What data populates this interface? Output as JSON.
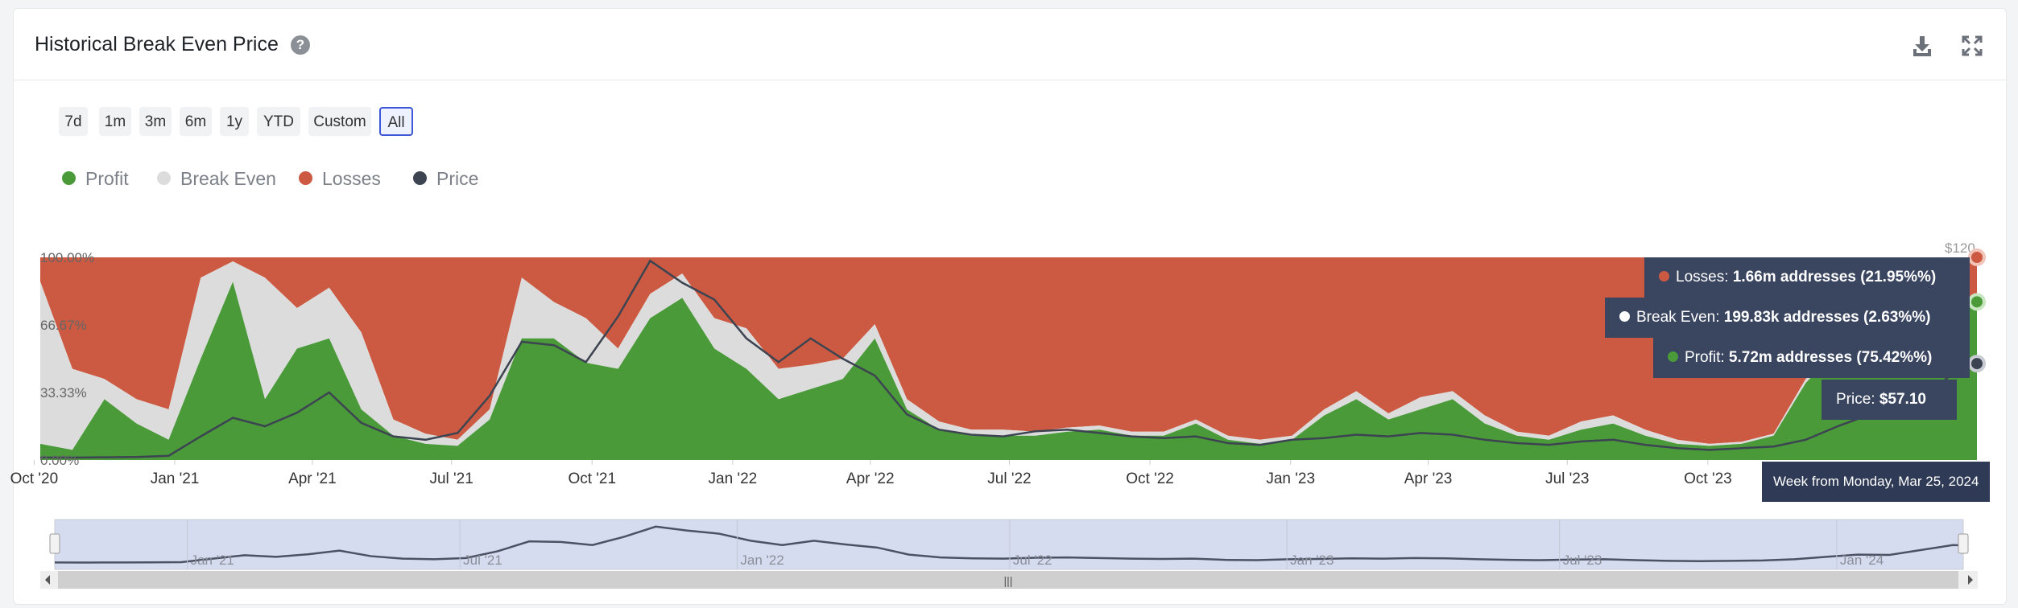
{
  "header": {
    "title": "Historical Break Even Price",
    "help_icon": "question-circle-icon",
    "download_icon": "download-icon",
    "expand_icon": "expand-icon"
  },
  "range_buttons": [
    "7d",
    "1m",
    "3m",
    "6m",
    "1y",
    "YTD",
    "Custom",
    "All"
  ],
  "active_range": "All",
  "legend": [
    {
      "label": "Profit",
      "color": "#4a9a3a"
    },
    {
      "label": "Break Even",
      "color": "#dcdcdc"
    },
    {
      "label": "Losses",
      "color": "#cc5a42"
    },
    {
      "label": "Price",
      "color": "#3d4451"
    }
  ],
  "tooltip": {
    "losses_label": "Losses: ",
    "losses_value": "1.66m addresses (21.95%%)",
    "break_even_label": "Break Even: ",
    "break_even_value": "199.83k addresses (2.63%%)",
    "profit_label": "Profit: ",
    "profit_value": "5.72m addresses (75.42%%)",
    "price_label": "Price: ",
    "price_value": "$57.10",
    "week_label": "Week from Monday, Mar 25, 2024"
  },
  "navigator": {
    "tick_labels": [
      "Jan '21",
      "Jul '21",
      "Jan '22",
      "Jul '22",
      "Jan '23",
      "Jul '23",
      "Jan '24"
    ],
    "scrollbar_grip": "|||"
  },
  "chart_data": {
    "type": "area",
    "stacking": "percent",
    "x": [
      "2020-10-05",
      "2020-10-26",
      "2020-11-16",
      "2020-12-07",
      "2020-12-28",
      "2021-01-18",
      "2021-02-08",
      "2021-03-01",
      "2021-03-22",
      "2021-04-12",
      "2021-05-03",
      "2021-05-24",
      "2021-06-14",
      "2021-07-05",
      "2021-07-26",
      "2021-08-16",
      "2021-09-06",
      "2021-09-27",
      "2021-10-18",
      "2021-11-08",
      "2021-11-29",
      "2021-12-20",
      "2022-01-10",
      "2022-01-31",
      "2022-02-21",
      "2022-03-14",
      "2022-04-04",
      "2022-04-25",
      "2022-05-16",
      "2022-06-06",
      "2022-06-27",
      "2022-07-18",
      "2022-08-08",
      "2022-08-29",
      "2022-09-19",
      "2022-10-10",
      "2022-10-31",
      "2022-11-21",
      "2022-12-12",
      "2023-01-02",
      "2023-01-23",
      "2023-02-13",
      "2023-03-06",
      "2023-03-27",
      "2023-04-17",
      "2023-05-08",
      "2023-05-29",
      "2023-06-19",
      "2023-07-10",
      "2023-07-31",
      "2023-08-21",
      "2023-09-11",
      "2023-10-02",
      "2023-10-23",
      "2023-11-13",
      "2023-12-04",
      "2023-12-25",
      "2024-01-15",
      "2024-02-05",
      "2024-02-26",
      "2024-03-18",
      "2024-03-25"
    ],
    "series": [
      {
        "name": "Profit",
        "color": "#4a9a3a",
        "values": [
          8,
          5,
          30,
          18,
          10,
          50,
          88,
          30,
          55,
          60,
          25,
          12,
          8,
          7,
          20,
          60,
          60,
          48,
          45,
          70,
          80,
          55,
          45,
          30,
          35,
          40,
          60,
          25,
          15,
          12,
          12,
          12,
          14,
          15,
          12,
          12,
          18,
          10,
          8,
          10,
          22,
          30,
          20,
          25,
          30,
          18,
          12,
          10,
          15,
          18,
          12,
          8,
          7,
          8,
          12,
          38,
          55,
          55,
          45,
          72,
          76,
          75.42
        ]
      },
      {
        "name": "Break Even",
        "color": "#dcdcdc",
        "values": [
          80,
          40,
          10,
          12,
          15,
          40,
          10,
          60,
          20,
          25,
          38,
          8,
          5,
          3,
          5,
          30,
          18,
          22,
          10,
          12,
          12,
          15,
          20,
          15,
          12,
          10,
          7,
          5,
          4,
          3,
          3,
          2,
          2,
          2,
          2,
          2,
          2,
          2,
          2,
          2,
          3,
          4,
          3,
          6,
          4,
          4,
          2,
          2,
          4,
          4,
          3,
          2,
          1,
          1,
          1,
          2,
          2,
          2,
          2,
          3,
          3,
          2.63
        ]
      },
      {
        "name": "Losses",
        "color": "#cc5a42",
        "values": [
          12,
          55,
          60,
          70,
          75,
          10,
          2,
          10,
          25,
          15,
          37,
          80,
          87,
          90,
          75,
          10,
          22,
          30,
          45,
          18,
          8,
          30,
          35,
          55,
          53,
          50,
          33,
          70,
          81,
          85,
          85,
          86,
          84,
          83,
          86,
          86,
          80,
          88,
          90,
          88,
          75,
          66,
          77,
          69,
          66,
          78,
          86,
          88,
          81,
          78,
          85,
          90,
          92,
          91,
          87,
          60,
          43,
          43,
          53,
          25,
          21,
          21.95
        ]
      },
      {
        "name": "Price",
        "color": "#3d4451",
        "axis": "right",
        "values": [
          1.5,
          1.4,
          1.6,
          1.8,
          2.5,
          14,
          25,
          20,
          28,
          40,
          22,
          14,
          12,
          16,
          38,
          70,
          68,
          58,
          85,
          118,
          105,
          95,
          72,
          58,
          72,
          60,
          50,
          27,
          18,
          15,
          14,
          17,
          18,
          16,
          14,
          13,
          14,
          10,
          9,
          12,
          13,
          15,
          14,
          16,
          15,
          12,
          10,
          9,
          11,
          12,
          9,
          7,
          6,
          7,
          8,
          12,
          20,
          27,
          26,
          42,
          58,
          57.1
        ]
      }
    ],
    "x_tick_labels": [
      "Oct '20",
      "Jan '21",
      "Apr '21",
      "Jul '21",
      "Oct '21",
      "Jan '22",
      "Apr '22",
      "Jul '22",
      "Oct '22",
      "Jan '23",
      "Apr '23",
      "Jul '23",
      "Oct '23"
    ],
    "x_tick_dates": [
      "2020-10-01",
      "2021-01-01",
      "2021-04-01",
      "2021-07-01",
      "2021-10-01",
      "2022-01-01",
      "2022-04-01",
      "2022-07-01",
      "2022-10-01",
      "2023-01-01",
      "2023-04-01",
      "2023-07-01",
      "2023-10-01"
    ],
    "y_left_tick_labels": [
      "0.00%",
      "33.33%",
      "66.67%",
      "100.00%"
    ],
    "y_left_ticks": [
      0,
      33.33,
      66.67,
      100
    ],
    "y_right_tick_labels": [
      "$120"
    ],
    "y_right_ticks": [
      120
    ],
    "ylim_left": [
      0,
      100
    ],
    "ylim_right": [
      0,
      120
    ],
    "hover_index": 61,
    "grid": false,
    "legend_position": "top-left"
  }
}
